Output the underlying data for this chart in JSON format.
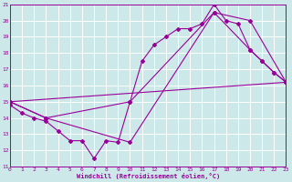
{
  "xlabel": "Windchill (Refroidissement éolien,°C)",
  "xlim": [
    0,
    23
  ],
  "ylim": [
    11,
    21
  ],
  "yticks": [
    11,
    12,
    13,
    14,
    15,
    16,
    17,
    18,
    19,
    20,
    21
  ],
  "xticks": [
    0,
    1,
    2,
    3,
    4,
    5,
    6,
    7,
    8,
    9,
    10,
    11,
    12,
    13,
    14,
    15,
    16,
    17,
    18,
    19,
    20,
    21,
    22,
    23
  ],
  "bg_color": "#cce8e8",
  "line_color": "#990099",
  "grid_color": "#ffffff",
  "lines": [
    {
      "x": [
        0,
        1,
        2,
        3,
        4,
        5,
        6,
        7,
        8,
        9,
        10,
        11,
        12,
        13,
        14,
        15,
        16,
        17,
        18,
        19,
        20,
        21,
        22,
        23
      ],
      "y": [
        14.8,
        14.3,
        14.0,
        13.8,
        13.2,
        12.6,
        12.6,
        11.5,
        12.6,
        12.5,
        15.0,
        17.5,
        18.5,
        19.0,
        19.5,
        19.5,
        19.8,
        21.0,
        20.0,
        19.8,
        18.2,
        17.5,
        16.8,
        16.2
      ]
    },
    {
      "x": [
        0,
        23
      ],
      "y": [
        15.0,
        16.2
      ]
    },
    {
      "x": [
        0,
        3,
        10,
        17,
        20,
        21,
        22,
        23
      ],
      "y": [
        15.0,
        14.0,
        15.0,
        20.5,
        18.2,
        17.5,
        16.8,
        16.2
      ]
    },
    {
      "x": [
        0,
        3,
        10,
        17,
        20,
        23
      ],
      "y": [
        15.0,
        14.0,
        12.5,
        20.5,
        20.0,
        16.2
      ]
    }
  ]
}
